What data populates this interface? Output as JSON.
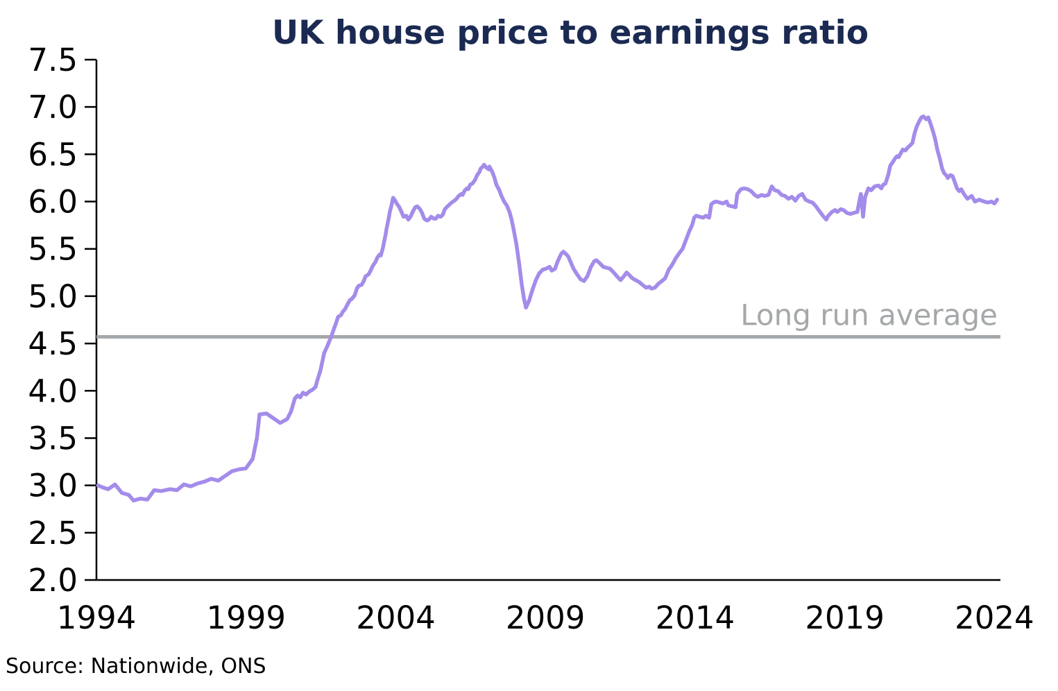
{
  "title": "UK house price to earnings ratio",
  "source_note": "Source: Nationwide, ONS",
  "colors": {
    "title": "#1b2a52",
    "series_line": "#a48cea",
    "average_line": "#a5a8aa",
    "average_text": "#a5a8aa",
    "axis": "#000000",
    "tick_text": "#000000",
    "source_text": "#000000",
    "background": "#ffffff"
  },
  "chart_data": {
    "type": "line",
    "title": "UK house price to earnings ratio",
    "xlabel": "",
    "ylabel": "",
    "grid": false,
    "legend_position": "none",
    "xlim": [
      1994,
      2024.2
    ],
    "ylim": [
      2.0,
      7.5
    ],
    "x_ticks": [
      1994,
      1999,
      2004,
      2009,
      2014,
      2019,
      2024
    ],
    "y_ticks": [
      7.5,
      7.0,
      6.5,
      6.0,
      5.5,
      5.0,
      4.5,
      4.0,
      3.5,
      3.0,
      2.5,
      2.0
    ],
    "reference_line": {
      "label": "Long run average",
      "value": 4.57
    },
    "series": [
      {
        "name": "UK house price to earnings ratio",
        "points": [
          [
            1994.05,
            3.0
          ],
          [
            1994.2,
            2.98
          ],
          [
            1994.39,
            2.96
          ],
          [
            1994.62,
            3.01
          ],
          [
            1994.85,
            2.92
          ],
          [
            1995.08,
            2.9
          ],
          [
            1995.24,
            2.84
          ],
          [
            1995.47,
            2.86
          ],
          [
            1995.7,
            2.85
          ],
          [
            1995.93,
            2.95
          ],
          [
            1996.16,
            2.94
          ],
          [
            1996.46,
            2.96
          ],
          [
            1996.69,
            2.95
          ],
          [
            1996.92,
            3.01
          ],
          [
            1997.15,
            2.99
          ],
          [
            1997.38,
            3.02
          ],
          [
            1997.61,
            3.04
          ],
          [
            1997.84,
            3.07
          ],
          [
            1998.07,
            3.05
          ],
          [
            1998.3,
            3.1
          ],
          [
            1998.53,
            3.15
          ],
          [
            1998.76,
            3.17
          ],
          [
            1998.99,
            3.18
          ],
          [
            1999.22,
            3.28
          ],
          [
            1999.36,
            3.5
          ],
          [
            1999.45,
            3.75
          ],
          [
            1999.68,
            3.76
          ],
          [
            1999.91,
            3.71
          ],
          [
            2000.14,
            3.66
          ],
          [
            2000.37,
            3.7
          ],
          [
            2000.5,
            3.78
          ],
          [
            2000.63,
            3.92
          ],
          [
            2000.72,
            3.95
          ],
          [
            2000.81,
            3.93
          ],
          [
            2000.9,
            3.98
          ],
          [
            2001.0,
            3.96
          ],
          [
            2001.1,
            3.99
          ],
          [
            2001.21,
            4.01
          ],
          [
            2001.32,
            4.04
          ],
          [
            2001.38,
            4.11
          ],
          [
            2001.48,
            4.21
          ],
          [
            2001.55,
            4.31
          ],
          [
            2001.61,
            4.4
          ],
          [
            2001.71,
            4.47
          ],
          [
            2001.84,
            4.57
          ],
          [
            2001.94,
            4.66
          ],
          [
            2002.01,
            4.72
          ],
          [
            2002.07,
            4.78
          ],
          [
            2002.17,
            4.8
          ],
          [
            2002.24,
            4.84
          ],
          [
            2002.3,
            4.86
          ],
          [
            2002.4,
            4.92
          ],
          [
            2002.47,
            4.96
          ],
          [
            2002.53,
            4.97
          ],
          [
            2002.63,
            5.01
          ],
          [
            2002.7,
            5.08
          ],
          [
            2002.76,
            5.11
          ],
          [
            2002.86,
            5.12
          ],
          [
            2002.93,
            5.16
          ],
          [
            2002.99,
            5.21
          ],
          [
            2003.09,
            5.23
          ],
          [
            2003.16,
            5.27
          ],
          [
            2003.23,
            5.32
          ],
          [
            2003.32,
            5.36
          ],
          [
            2003.39,
            5.41
          ],
          [
            2003.46,
            5.44
          ],
          [
            2003.5,
            5.43
          ],
          [
            2003.57,
            5.51
          ],
          [
            2003.62,
            5.59
          ],
          [
            2003.66,
            5.65
          ],
          [
            2003.69,
            5.71
          ],
          [
            2003.73,
            5.77
          ],
          [
            2003.78,
            5.85
          ],
          [
            2003.8,
            5.89
          ],
          [
            2003.85,
            5.95
          ],
          [
            2003.89,
            6.01
          ],
          [
            2003.91,
            6.04
          ],
          [
            2003.96,
            6.02
          ],
          [
            2004.03,
            5.98
          ],
          [
            2004.12,
            5.94
          ],
          [
            2004.19,
            5.89
          ],
          [
            2004.26,
            5.84
          ],
          [
            2004.35,
            5.85
          ],
          [
            2004.42,
            5.81
          ],
          [
            2004.49,
            5.84
          ],
          [
            2004.58,
            5.9
          ],
          [
            2004.65,
            5.94
          ],
          [
            2004.72,
            5.95
          ],
          [
            2004.81,
            5.92
          ],
          [
            2004.88,
            5.88
          ],
          [
            2004.95,
            5.82
          ],
          [
            2005.04,
            5.8
          ],
          [
            2005.11,
            5.81
          ],
          [
            2005.18,
            5.84
          ],
          [
            2005.27,
            5.82
          ],
          [
            2005.34,
            5.82
          ],
          [
            2005.41,
            5.85
          ],
          [
            2005.5,
            5.84
          ],
          [
            2005.57,
            5.86
          ],
          [
            2005.64,
            5.92
          ],
          [
            2005.73,
            5.95
          ],
          [
            2005.8,
            5.97
          ],
          [
            2005.87,
            5.99
          ],
          [
            2005.96,
            6.01
          ],
          [
            2006.03,
            6.03
          ],
          [
            2006.1,
            6.06
          ],
          [
            2006.19,
            6.08
          ],
          [
            2006.23,
            6.07
          ],
          [
            2006.31,
            6.12
          ],
          [
            2006.38,
            6.14
          ],
          [
            2006.42,
            6.13
          ],
          [
            2006.49,
            6.18
          ],
          [
            2006.56,
            6.19
          ],
          [
            2006.65,
            6.23
          ],
          [
            2006.72,
            6.28
          ],
          [
            2006.79,
            6.31
          ],
          [
            2006.84,
            6.35
          ],
          [
            2006.91,
            6.37
          ],
          [
            2006.95,
            6.39
          ],
          [
            2007.02,
            6.36
          ],
          [
            2007.11,
            6.34
          ],
          [
            2007.13,
            6.37
          ],
          [
            2007.23,
            6.31
          ],
          [
            2007.3,
            6.25
          ],
          [
            2007.36,
            6.18
          ],
          [
            2007.46,
            6.12
          ],
          [
            2007.53,
            6.06
          ],
          [
            2007.59,
            6.02
          ],
          [
            2007.64,
            5.99
          ],
          [
            2007.71,
            5.96
          ],
          [
            2007.8,
            5.89
          ],
          [
            2007.87,
            5.81
          ],
          [
            2007.94,
            5.7
          ],
          [
            2008.03,
            5.55
          ],
          [
            2008.12,
            5.35
          ],
          [
            2008.21,
            5.12
          ],
          [
            2008.28,
            4.98
          ],
          [
            2008.35,
            4.88
          ],
          [
            2008.45,
            4.95
          ],
          [
            2008.56,
            5.06
          ],
          [
            2008.68,
            5.17
          ],
          [
            2008.79,
            5.24
          ],
          [
            2008.91,
            5.28
          ],
          [
            2009.02,
            5.29
          ],
          [
            2009.14,
            5.31
          ],
          [
            2009.21,
            5.27
          ],
          [
            2009.32,
            5.29
          ],
          [
            2009.41,
            5.37
          ],
          [
            2009.53,
            5.45
          ],
          [
            2009.6,
            5.47
          ],
          [
            2009.67,
            5.45
          ],
          [
            2009.76,
            5.42
          ],
          [
            2009.83,
            5.37
          ],
          [
            2009.94,
            5.29
          ],
          [
            2010.06,
            5.23
          ],
          [
            2010.17,
            5.18
          ],
          [
            2010.29,
            5.16
          ],
          [
            2010.4,
            5.21
          ],
          [
            2010.52,
            5.31
          ],
          [
            2010.63,
            5.37
          ],
          [
            2010.7,
            5.38
          ],
          [
            2010.81,
            5.35
          ],
          [
            2010.93,
            5.31
          ],
          [
            2011.05,
            5.3
          ],
          [
            2011.16,
            5.29
          ],
          [
            2011.28,
            5.25
          ],
          [
            2011.39,
            5.21
          ],
          [
            2011.51,
            5.17
          ],
          [
            2011.62,
            5.21
          ],
          [
            2011.71,
            5.25
          ],
          [
            2011.78,
            5.23
          ],
          [
            2011.9,
            5.19
          ],
          [
            2012.01,
            5.17
          ],
          [
            2012.13,
            5.15
          ],
          [
            2012.24,
            5.12
          ],
          [
            2012.36,
            5.09
          ],
          [
            2012.47,
            5.1
          ],
          [
            2012.54,
            5.08
          ],
          [
            2012.66,
            5.09
          ],
          [
            2012.77,
            5.13
          ],
          [
            2012.89,
            5.16
          ],
          [
            2013.0,
            5.19
          ],
          [
            2013.12,
            5.28
          ],
          [
            2013.23,
            5.33
          ],
          [
            2013.35,
            5.4
          ],
          [
            2013.46,
            5.45
          ],
          [
            2013.58,
            5.5
          ],
          [
            2013.69,
            5.59
          ],
          [
            2013.81,
            5.69
          ],
          [
            2013.9,
            5.75
          ],
          [
            2013.97,
            5.83
          ],
          [
            2014.04,
            5.85
          ],
          [
            2014.15,
            5.84
          ],
          [
            2014.27,
            5.83
          ],
          [
            2014.36,
            5.85
          ],
          [
            2014.47,
            5.83
          ],
          [
            2014.54,
            5.97
          ],
          [
            2014.61,
            5.99
          ],
          [
            2014.7,
            6.0
          ],
          [
            2014.82,
            5.99
          ],
          [
            2014.93,
            5.98
          ],
          [
            2015.05,
            6.0
          ],
          [
            2015.11,
            5.96
          ],
          [
            2015.23,
            5.95
          ],
          [
            2015.35,
            5.94
          ],
          [
            2015.41,
            6.08
          ],
          [
            2015.53,
            6.13
          ],
          [
            2015.64,
            6.14
          ],
          [
            2015.76,
            6.13
          ],
          [
            2015.87,
            6.11
          ],
          [
            2015.99,
            6.07
          ],
          [
            2016.1,
            6.05
          ],
          [
            2016.22,
            6.07
          ],
          [
            2016.33,
            6.06
          ],
          [
            2016.45,
            6.07
          ],
          [
            2016.56,
            6.16
          ],
          [
            2016.66,
            6.12
          ],
          [
            2016.77,
            6.11
          ],
          [
            2016.89,
            6.07
          ],
          [
            2017.0,
            6.06
          ],
          [
            2017.12,
            6.03
          ],
          [
            2017.23,
            6.05
          ],
          [
            2017.35,
            6.01
          ],
          [
            2017.46,
            6.06
          ],
          [
            2017.58,
            6.08
          ],
          [
            2017.69,
            6.02
          ],
          [
            2017.81,
            6.0
          ],
          [
            2017.92,
            5.99
          ],
          [
            2018.04,
            5.95
          ],
          [
            2018.15,
            5.9
          ],
          [
            2018.27,
            5.85
          ],
          [
            2018.38,
            5.81
          ],
          [
            2018.45,
            5.85
          ],
          [
            2018.57,
            5.89
          ],
          [
            2018.68,
            5.91
          ],
          [
            2018.75,
            5.89
          ],
          [
            2018.87,
            5.92
          ],
          [
            2018.96,
            5.91
          ],
          [
            2019.07,
            5.88
          ],
          [
            2019.19,
            5.87
          ],
          [
            2019.3,
            5.88
          ],
          [
            2019.42,
            5.89
          ],
          [
            2019.49,
            6.01
          ],
          [
            2019.54,
            6.08
          ],
          [
            2019.61,
            5.84
          ],
          [
            2019.68,
            6.05
          ],
          [
            2019.79,
            6.14
          ],
          [
            2019.88,
            6.12
          ],
          [
            2020.0,
            6.16
          ],
          [
            2020.13,
            6.17
          ],
          [
            2020.22,
            6.14
          ],
          [
            2020.29,
            6.18
          ],
          [
            2020.36,
            6.19
          ],
          [
            2020.46,
            6.29
          ],
          [
            2020.52,
            6.38
          ],
          [
            2020.59,
            6.41
          ],
          [
            2020.69,
            6.46
          ],
          [
            2020.75,
            6.48
          ],
          [
            2020.8,
            6.47
          ],
          [
            2020.87,
            6.51
          ],
          [
            2020.94,
            6.55
          ],
          [
            2021.03,
            6.54
          ],
          [
            2021.1,
            6.57
          ],
          [
            2021.17,
            6.59
          ],
          [
            2021.26,
            6.62
          ],
          [
            2021.33,
            6.72
          ],
          [
            2021.4,
            6.79
          ],
          [
            2021.49,
            6.85
          ],
          [
            2021.56,
            6.89
          ],
          [
            2021.63,
            6.9
          ],
          [
            2021.72,
            6.87
          ],
          [
            2021.79,
            6.89
          ],
          [
            2021.86,
            6.83
          ],
          [
            2021.95,
            6.74
          ],
          [
            2022.02,
            6.66
          ],
          [
            2022.09,
            6.55
          ],
          [
            2022.18,
            6.45
          ],
          [
            2022.25,
            6.35
          ],
          [
            2022.32,
            6.3
          ],
          [
            2022.41,
            6.27
          ],
          [
            2022.44,
            6.25
          ],
          [
            2022.53,
            6.28
          ],
          [
            2022.6,
            6.27
          ],
          [
            2022.67,
            6.21
          ],
          [
            2022.75,
            6.14
          ],
          [
            2022.82,
            6.11
          ],
          [
            2022.89,
            6.13
          ],
          [
            2022.98,
            6.08
          ],
          [
            2023.1,
            6.03
          ],
          [
            2023.24,
            6.06
          ],
          [
            2023.35,
            6.0
          ],
          [
            2023.49,
            6.02
          ],
          [
            2023.65,
            6.0
          ],
          [
            2023.79,
            5.99
          ],
          [
            2023.9,
            6.0
          ],
          [
            2024.0,
            5.98
          ],
          [
            2024.09,
            6.02
          ]
        ]
      }
    ]
  }
}
